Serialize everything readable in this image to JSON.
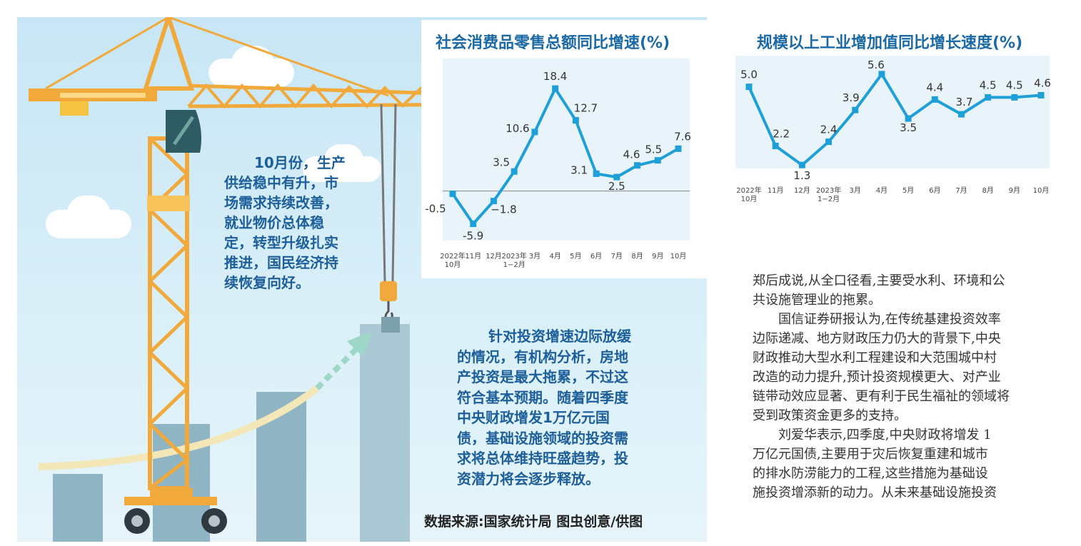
{
  "colors": {
    "accent": "#1b6aa5",
    "line": "#1f9fd8",
    "crane": "#f0a93a",
    "scene_bg": "#c7e6f5"
  },
  "left_paragraph": [
    "10月份，生产",
    "供给稳中有升，市",
    "场需求持续改善，",
    "就业物价总体稳",
    "定，转型升级扎实",
    "推进，国民经济持",
    "续恢复向好。"
  ],
  "center_paragraph": [
    "针对投资增速边际放缓",
    "的情况，有机构分析，房地",
    "产投资是最大拖累，不过这",
    "符合基本预期。随着四季度",
    "中央财政增发1万亿元国",
    "债，基础设施领域的投资需",
    "求将总体维持旺盛趋势，投",
    "资潜力将会逐步释放。"
  ],
  "source_line": "数据来源:国家统计局  图虫创意/供图",
  "article": {
    "lines": [
      "郑后成说,从全口径看,主要受水利、环境和公",
      "共设施管理业的拖累。",
      "　　国信证券研报认为,在传统基建投资效率",
      "边际递减、地方财政压力仍大的背景下,中央",
      "财政推动大型水利工程建设和大范围城中村",
      "改造的动力提升,预计投资规模更大、对产业",
      "链带动效应显著、更有利于民生福祉的领域将",
      "受到政策资金更多的支持。",
      "　　刘爱华表示,四季度,中央财政将增发 1",
      "万亿元国债,主要用于灾后恢复重建和城市",
      "的排水防涝能力的工程,这些措施为基础设",
      "施投资增添新的动力。从未来基础设施投资"
    ]
  },
  "chart_data": [
    {
      "type": "line",
      "title": "社会消费品零售总额同比增速(%)",
      "categories": [
        [
          "2022年",
          "10月"
        ],
        [
          "11月"
        ],
        [
          "12月"
        ],
        [
          "2023年",
          "1−2月"
        ],
        [
          "3月"
        ],
        [
          "4月"
        ],
        [
          "5月"
        ],
        [
          "6月"
        ],
        [
          "7月"
        ],
        [
          "8月"
        ],
        [
          "9月"
        ],
        [
          "10月"
        ]
      ],
      "values": [
        -0.5,
        -5.9,
        -1.8,
        3.5,
        10.6,
        18.4,
        12.7,
        3.1,
        2.5,
        4.6,
        5.5,
        7.6
      ],
      "value_labels": [
        "-0.5",
        "-5.9",
        "−1.8",
        "3.5",
        "10.6",
        "18.4",
        "12.7",
        "3.1",
        "2.5",
        "4.6",
        "5.5",
        "7.6"
      ],
      "ylim": [
        -8,
        22
      ],
      "zero_line": true
    },
    {
      "type": "line",
      "title": "规模以上工业增加值同比增长速度(%)",
      "categories": [
        [
          "2022年",
          "10月"
        ],
        [
          "11月"
        ],
        [
          "12月"
        ],
        [
          "2023年",
          "1−2月"
        ],
        [
          "3月"
        ],
        [
          "4月"
        ],
        [
          "5月"
        ],
        [
          "6月"
        ],
        [
          "7月"
        ],
        [
          "8月"
        ],
        [
          "9月"
        ],
        [
          "10月"
        ]
      ],
      "values": [
        5.0,
        2.2,
        1.3,
        2.4,
        3.9,
        5.6,
        3.5,
        4.4,
        3.7,
        4.5,
        4.5,
        4.6
      ],
      "value_labels": [
        "5.0",
        "2.2",
        "1.3",
        "2.4",
        "3.9",
        "5.6",
        "3.5",
        "4.4",
        "3.7",
        "4.5",
        "4.5",
        "4.6"
      ],
      "ylim": [
        0.8,
        6.0
      ]
    }
  ]
}
